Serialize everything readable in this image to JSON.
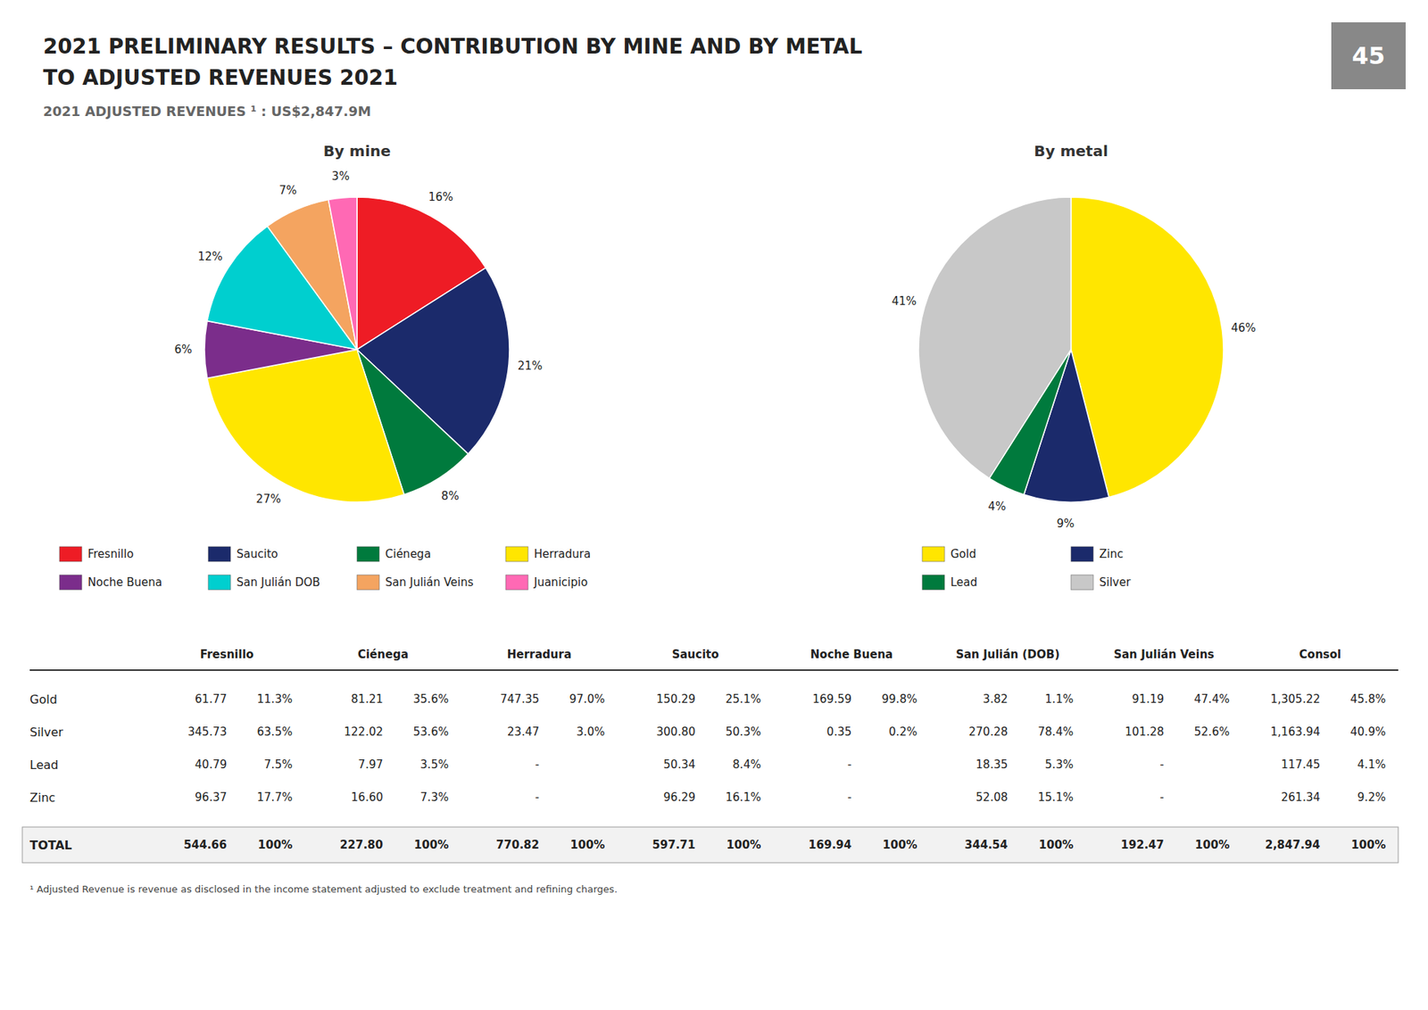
{
  "title": [
    "2021 PRELIMINARY RESULTS – CONTRIBUTION BY MINE AND BY METAL",
    "TO ADJUSTED REVENUES 2021"
  ],
  "subtitle": "2021 ADJUSTED REVENUES ¹ : US$2,847.9M",
  "page_number": "45",
  "footnote": "¹ Adjusted Revenue is revenue as disclosed in the income statement adjusted to exclude treatment and refining charges.",
  "chart_data": [
    {
      "type": "pie",
      "title": "By mine",
      "categories": [
        "Fresnillo",
        "Saucito",
        "Ciénega",
        "Herradura",
        "Noche Buena",
        "San Julián DOB",
        "San Julián Veins",
        "Juanicipio"
      ],
      "values": [
        16,
        21,
        8,
        27,
        6,
        12,
        7,
        3
      ],
      "value_labels": [
        "16%",
        "21%",
        "8%",
        "27%",
        "6%",
        "12%",
        "7%",
        "3%"
      ],
      "colors": [
        "#EE1C25",
        "#1B2A6B",
        "#007A3D",
        "#FFE600",
        "#7B2D8B",
        "#00CFCF",
        "#F4A460",
        "#FF69B4"
      ],
      "data_labels": true,
      "legend": "bottom"
    },
    {
      "type": "pie",
      "title": "By metal",
      "categories": [
        "Gold",
        "Zinc",
        "Lead",
        "Silver"
      ],
      "values": [
        46,
        9,
        4,
        41
      ],
      "value_labels": [
        "46%",
        "9%",
        "4%",
        "41%"
      ],
      "colors": [
        "#FFE600",
        "#1B2A6B",
        "#007A3D",
        "#C8C8C8"
      ],
      "data_labels": true,
      "legend": "bottom"
    },
    {
      "type": "table",
      "columns": [
        "Fresnillo",
        "Ciénega",
        "Herradura",
        "Saucito",
        "Noche Buena",
        "San Julián (DOB)",
        "San Julián Veins",
        "Consol"
      ],
      "rows": [
        {
          "name": "Gold",
          "cells": [
            "61.77",
            "11.3%",
            "81.21",
            "35.6%",
            "747.35",
            "97.0%",
            "150.29",
            "25.1%",
            "169.59",
            "99.8%",
            "3.82",
            "1.1%",
            "91.19",
            "47.4%",
            "1,305.22",
            "45.8%"
          ]
        },
        {
          "name": "Silver",
          "cells": [
            "345.73",
            "63.5%",
            "122.02",
            "53.6%",
            "23.47",
            "3.0%",
            "300.80",
            "50.3%",
            "0.35",
            "0.2%",
            "270.28",
            "78.4%",
            "101.28",
            "52.6%",
            "1,163.94",
            "40.9%"
          ]
        },
        {
          "name": "Lead",
          "cells": [
            "40.79",
            "7.5%",
            "7.97",
            "3.5%",
            "-",
            null,
            "50.34",
            "8.4%",
            "-",
            null,
            "18.35",
            "5.3%",
            "-",
            null,
            "117.45",
            "4.1%"
          ]
        },
        {
          "name": "Zinc",
          "cells": [
            "96.37",
            "17.7%",
            "16.60",
            "7.3%",
            "-",
            null,
            "96.29",
            "16.1%",
            "-",
            null,
            "52.08",
            "15.1%",
            "-",
            null,
            "261.34",
            "9.2%"
          ]
        }
      ],
      "total": {
        "name": "TOTAL",
        "cells": [
          "544.66",
          "100%",
          "227.80",
          "100%",
          "770.82",
          "100%",
          "597.71",
          "100%",
          "169.94",
          "100%",
          "344.54",
          "100%",
          "192.47",
          "100%",
          "2,847.94",
          "100%"
        ]
      }
    }
  ]
}
